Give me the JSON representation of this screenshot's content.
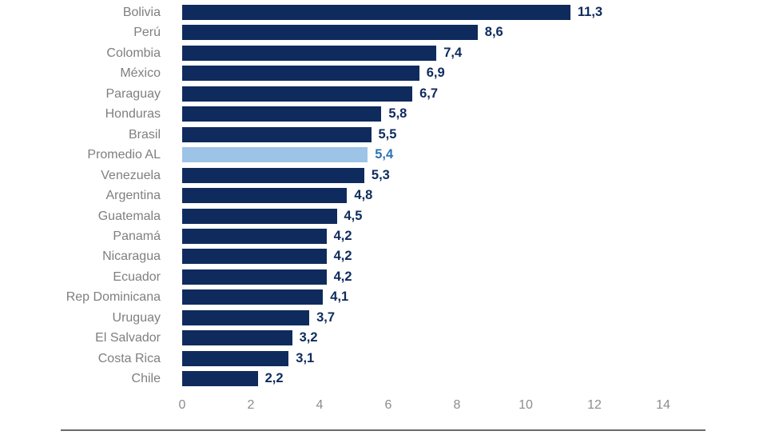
{
  "chart_data": {
    "type": "bar",
    "orientation": "horizontal",
    "title": "",
    "xlabel": "",
    "ylabel": "",
    "grid": "off",
    "legend": "none",
    "xlim": [
      0,
      14
    ],
    "x_ticks": [
      "0",
      "2",
      "4",
      "6",
      "8",
      "10",
      "12",
      "14"
    ],
    "categories": [
      "Bolivia",
      "Perú",
      "Colombia",
      "México",
      "Paraguay",
      "Honduras",
      "Brasil",
      "Promedio AL",
      "Venezuela",
      "Argentina",
      "Guatemala",
      "Panamá",
      "Nicaragua",
      "Ecuador",
      "Rep Dominicana",
      "Uruguay",
      "El Salvador",
      "Costa Rica",
      "Chile"
    ],
    "values": [
      11.3,
      8.6,
      7.4,
      6.9,
      6.7,
      5.8,
      5.5,
      5.4,
      5.3,
      4.8,
      4.5,
      4.2,
      4.2,
      4.2,
      4.1,
      3.7,
      3.2,
      3.1,
      2.2
    ],
    "value_labels": [
      "11,3",
      "8,6",
      "7,4",
      "6,9",
      "6,7",
      "5,8",
      "5,5",
      "5,4",
      "5,3",
      "4,8",
      "4,5",
      "4,2",
      "4,2",
      "4,2",
      "4,1",
      "3,7",
      "3,2",
      "3,1",
      "2,2"
    ],
    "highlight_category": "Promedio AL",
    "highlight_index": 7,
    "colors": {
      "bar": "#0F2B5E",
      "highlight_bar": "#9DC3E6",
      "value_label": "#0F2B5E",
      "highlight_value_label": "#2E75B6",
      "category_label": "#7F7F7F",
      "axis_tick_label": "#8C8C8C",
      "baseline": "#6B6B6B"
    }
  }
}
